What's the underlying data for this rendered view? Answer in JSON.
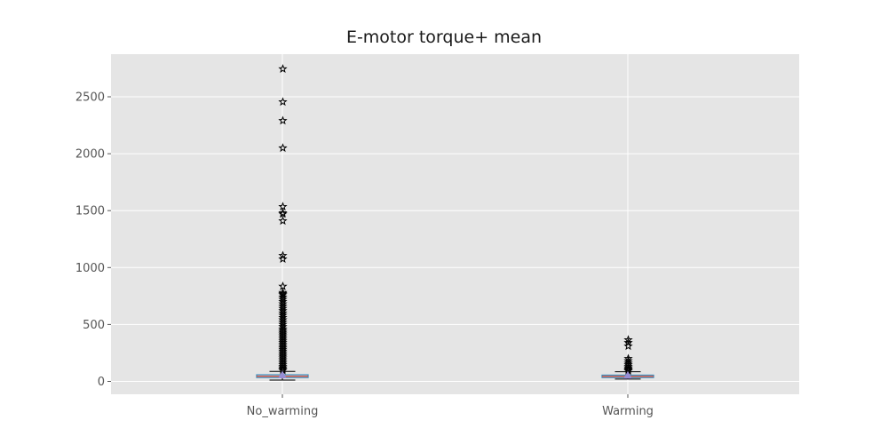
{
  "chart_data": {
    "type": "box",
    "title": "E-motor torque+ mean",
    "xlabel": "",
    "ylabel": "",
    "categories": [
      "No_warming",
      "Warming"
    ],
    "ylim": [
      -115,
      2880
    ],
    "yticks": [
      0,
      500,
      1000,
      1500,
      2000,
      2500
    ],
    "grid": true,
    "background_color": "#e5e5e5",
    "grid_color": "#ffffff",
    "box_color": "#348abd",
    "median_color": "#e24a33",
    "mean_marker_color": "#988ed5",
    "flier_marker": "star",
    "boxes": [
      {
        "name": "No_warming",
        "whisker_low": 12,
        "q1": 34,
        "median": 45,
        "q3": 58,
        "whisker_high": 88,
        "mean": 55,
        "fliers": [
          2745,
          2455,
          2290,
          2050,
          1535,
          1480,
          1470,
          1410,
          1105,
          1075,
          835,
          780,
          770,
          760,
          740,
          720,
          700,
          680,
          660,
          640,
          620,
          600,
          580,
          560,
          540,
          520,
          500,
          480,
          460,
          445,
          430,
          415,
          400,
          385,
          370,
          355,
          340,
          325,
          310,
          295,
          280,
          265,
          250,
          235,
          220,
          205,
          190,
          175,
          160,
          145,
          130,
          118,
          106,
          96
        ]
      },
      {
        "name": "Warming",
        "whisker_low": 20,
        "q1": 34,
        "median": 44,
        "q3": 55,
        "whisker_high": 85,
        "mean": 52,
        "fliers": [
          365,
          340,
          310,
          200,
          180,
          160,
          145,
          130,
          118,
          108,
          98,
          92
        ]
      }
    ]
  }
}
